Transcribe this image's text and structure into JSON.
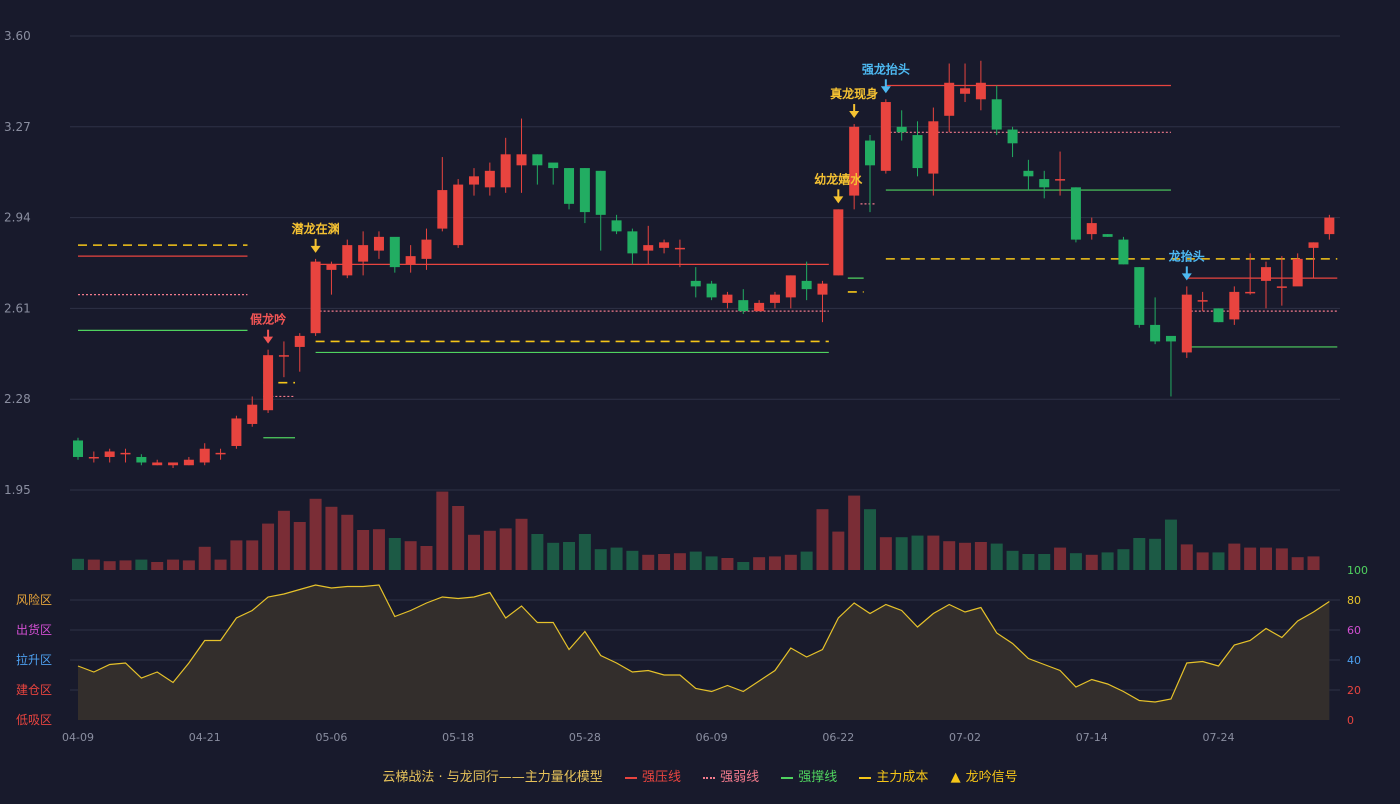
{
  "colors": {
    "background": "#181a2c",
    "up": "#e8443f",
    "down": "#22ad62",
    "volume_up": "#7a2d36",
    "volume_down": "#1c5a45",
    "strong_pressure": "#e8443f",
    "strong_weak": "#f27a8c",
    "strong_support": "#4fd25f",
    "cost": "#f5c518",
    "blue_signal": "#4db8f0",
    "yellow_signal": "#f5c232",
    "red_signal": "#f25555",
    "grid": "#2e3146",
    "axis_text": "#8a8ea0",
    "oscillator_line": "#e6c22a",
    "oscillator_fill": "#332e2c"
  },
  "chart_data": {
    "type": "candlestick",
    "x_tick_labels": [
      "04-09",
      "04-21",
      "05-06",
      "05-18",
      "05-28",
      "06-09",
      "06-22",
      "07-02",
      "07-14",
      "07-24"
    ],
    "x_tick_index": [
      0,
      8,
      16,
      24,
      32,
      40,
      48,
      56,
      64,
      72
    ],
    "y_ticks": [
      "3.60",
      "3.27",
      "2.94",
      "2.61",
      "2.28",
      "1.95"
    ],
    "ylim": [
      1.95,
      3.6
    ],
    "candles": [
      [
        2.13,
        2.07,
        2.14,
        2.06
      ],
      [
        2.065,
        2.07,
        2.09,
        2.05
      ],
      [
        2.07,
        2.09,
        2.1,
        2.05
      ],
      [
        2.08,
        2.085,
        2.1,
        2.05
      ],
      [
        2.07,
        2.05,
        2.08,
        2.04
      ],
      [
        2.04,
        2.05,
        2.06,
        2.04
      ],
      [
        2.04,
        2.05,
        2.05,
        2.03
      ],
      [
        2.04,
        2.06,
        2.07,
        2.04
      ],
      [
        2.05,
        2.1,
        2.12,
        2.04
      ],
      [
        2.08,
        2.085,
        2.1,
        2.06
      ],
      [
        2.11,
        2.21,
        2.22,
        2.1
      ],
      [
        2.19,
        2.26,
        2.29,
        2.18
      ],
      [
        2.24,
        2.44,
        2.46,
        2.23
      ],
      [
        2.44,
        2.44,
        2.49,
        2.36
      ],
      [
        2.47,
        2.51,
        2.52,
        2.38
      ],
      [
        2.52,
        2.78,
        2.79,
        2.51
      ],
      [
        2.75,
        2.77,
        2.78,
        2.66
      ],
      [
        2.73,
        2.84,
        2.86,
        2.72
      ],
      [
        2.78,
        2.84,
        2.89,
        2.73
      ],
      [
        2.82,
        2.87,
        2.89,
        2.79
      ],
      [
        2.87,
        2.76,
        2.86,
        2.74
      ],
      [
        2.77,
        2.8,
        2.84,
        2.74
      ],
      [
        2.79,
        2.86,
        2.9,
        2.75
      ],
      [
        2.9,
        3.04,
        3.16,
        2.89
      ],
      [
        2.84,
        3.06,
        3.08,
        2.83
      ],
      [
        3.06,
        3.09,
        3.12,
        3.02
      ],
      [
        3.05,
        3.11,
        3.14,
        3.02
      ],
      [
        3.05,
        3.17,
        3.23,
        3.03
      ],
      [
        3.13,
        3.17,
        3.3,
        3.03
      ],
      [
        3.17,
        3.13,
        3.17,
        3.06
      ],
      [
        3.14,
        3.12,
        3.13,
        3.06
      ],
      [
        3.12,
        2.99,
        3.12,
        2.97
      ],
      [
        3.12,
        2.96,
        3.12,
        2.92
      ],
      [
        3.11,
        2.95,
        3.11,
        2.82
      ],
      [
        2.93,
        2.89,
        2.95,
        2.88
      ],
      [
        2.89,
        2.81,
        2.9,
        2.77
      ],
      [
        2.82,
        2.84,
        2.91,
        2.77
      ],
      [
        2.83,
        2.85,
        2.86,
        2.81
      ],
      [
        2.83,
        2.83,
        2.86,
        2.76
      ],
      [
        2.71,
        2.69,
        2.76,
        2.65
      ],
      [
        2.7,
        2.65,
        2.71,
        2.64
      ],
      [
        2.63,
        2.66,
        2.67,
        2.61
      ],
      [
        2.64,
        2.6,
        2.68,
        2.59
      ],
      [
        2.6,
        2.63,
        2.64,
        2.6
      ],
      [
        2.63,
        2.66,
        2.67,
        2.61
      ],
      [
        2.65,
        2.73,
        2.73,
        2.61
      ],
      [
        2.71,
        2.68,
        2.78,
        2.64
      ],
      [
        2.66,
        2.7,
        2.71,
        2.56
      ],
      [
        2.73,
        2.97,
        2.97,
        2.73
      ],
      [
        3.02,
        3.27,
        3.28,
        2.97
      ],
      [
        3.22,
        3.13,
        3.24,
        2.96
      ],
      [
        3.11,
        3.36,
        3.37,
        3.1
      ],
      [
        3.27,
        3.25,
        3.33,
        3.22
      ],
      [
        3.24,
        3.12,
        3.29,
        3.09
      ],
      [
        3.1,
        3.29,
        3.34,
        3.02
      ],
      [
        3.31,
        3.43,
        3.5,
        3.25
      ],
      [
        3.39,
        3.41,
        3.5,
        3.36
      ],
      [
        3.37,
        3.43,
        3.51,
        3.33
      ],
      [
        3.37,
        3.26,
        3.42,
        3.24
      ],
      [
        3.26,
        3.21,
        3.27,
        3.16
      ],
      [
        3.11,
        3.09,
        3.15,
        3.04
      ],
      [
        3.08,
        3.05,
        3.11,
        3.01
      ],
      [
        3.08,
        3.08,
        3.18,
        3.02
      ],
      [
        3.05,
        2.86,
        3.05,
        2.85
      ],
      [
        2.88,
        2.92,
        2.94,
        2.86
      ],
      [
        2.88,
        2.87,
        2.88,
        2.87
      ],
      [
        2.86,
        2.77,
        2.87,
        2.77
      ],
      [
        2.76,
        2.55,
        2.76,
        2.54
      ],
      [
        2.55,
        2.49,
        2.65,
        2.48
      ],
      [
        2.51,
        2.49,
        2.5,
        2.29
      ],
      [
        2.45,
        2.66,
        2.69,
        2.43
      ],
      [
        2.64,
        2.64,
        2.67,
        2.6
      ],
      [
        2.61,
        2.56,
        2.61,
        2.56
      ],
      [
        2.57,
        2.67,
        2.69,
        2.55
      ],
      [
        2.67,
        2.67,
        2.81,
        2.66
      ],
      [
        2.71,
        2.76,
        2.78,
        2.61
      ],
      [
        2.69,
        2.69,
        2.8,
        2.62
      ],
      [
        2.69,
        2.79,
        2.81,
        2.7
      ],
      [
        2.83,
        2.85,
        2.85,
        2.72
      ],
      [
        2.88,
        2.94,
        2.95,
        2.86
      ]
    ],
    "volume_ymax": 10,
    "volumes": [
      1.4,
      1.3,
      1.1,
      1.2,
      1.3,
      1.0,
      1.3,
      1.2,
      2.9,
      1.3,
      3.7,
      3.7,
      5.8,
      7.4,
      6.0,
      8.9,
      7.9,
      6.9,
      5.0,
      5.1,
      4.0,
      3.6,
      3.0,
      9.8,
      8.0,
      4.4,
      4.9,
      5.2,
      6.4,
      4.5,
      3.4,
      3.5,
      4.5,
      2.6,
      2.8,
      2.4,
      1.9,
      2.0,
      2.1,
      2.3,
      1.7,
      1.5,
      1.0,
      1.6,
      1.7,
      1.9,
      2.3,
      7.6,
      4.8,
      9.3,
      7.6,
      4.1,
      4.1,
      4.3,
      4.3,
      3.6,
      3.4,
      3.5,
      3.3,
      2.4,
      2.0,
      2.0,
      2.8,
      2.1,
      1.9,
      2.2,
      2.6,
      4.0,
      3.9,
      6.3,
      3.2,
      2.2,
      2.2,
      3.3,
      2.8,
      2.8,
      2.7,
      1.6,
      1.7
    ],
    "oscillator": {
      "ylim": [
        0,
        100
      ],
      "y_ticks": [
        "100",
        "80",
        "60",
        "40",
        "20",
        "0"
      ],
      "zones": [
        "风险区",
        "出货区",
        "拉升区",
        "建仓区",
        "低吸区"
      ],
      "values": [
        36,
        32,
        37,
        38,
        28,
        32,
        25,
        38,
        53,
        53,
        68,
        73,
        82,
        84,
        87,
        90,
        88,
        89,
        89,
        90,
        69,
        73,
        78,
        82,
        81,
        82,
        85,
        68,
        76,
        65,
        65,
        47,
        59,
        43,
        38,
        32,
        33,
        30,
        30,
        21,
        19,
        23,
        19,
        26,
        33,
        48,
        42,
        47,
        68,
        78,
        71,
        77,
        73,
        62,
        71,
        77,
        72,
        75,
        58,
        51,
        41,
        37,
        33,
        22,
        27,
        24,
        19,
        13,
        12,
        14,
        38,
        39,
        36,
        50,
        53,
        61,
        55,
        66,
        72,
        79
      ]
    },
    "signals": [
      {
        "index": 12,
        "label": "假龙吟",
        "kind": "red"
      },
      {
        "index": 15,
        "label": "潜龙在渊",
        "kind": "yellow"
      },
      {
        "index": 48,
        "label": "幼龙嬉水",
        "kind": "yellow"
      },
      {
        "index": 49,
        "label": "真龙现身",
        "kind": "yellow"
      },
      {
        "index": 51,
        "label": "强龙抬头",
        "kind": "blue"
      },
      {
        "index": 70,
        "label": "龙抬头",
        "kind": "blue"
      }
    ],
    "levels": [
      {
        "name": "强压线",
        "from": 0,
        "to": 10.7,
        "value": 2.8,
        "style": "solid",
        "color_key": "strong_pressure"
      },
      {
        "name": "强弱线",
        "from": 0,
        "to": 10.7,
        "value": 2.66,
        "style": "dotted",
        "color_key": "strong_weak"
      },
      {
        "name": "强撑线",
        "from": 0,
        "to": 10.7,
        "value": 2.53,
        "style": "solid",
        "color_key": "strong_support"
      },
      {
        "name": "主力成本",
        "from": 0,
        "to": 10.7,
        "value": 2.84,
        "style": "dashed",
        "color_key": "cost"
      },
      {
        "name": "强撑线",
        "from": 11.7,
        "to": 13.7,
        "value": 2.14,
        "style": "solid",
        "color_key": "strong_support"
      },
      {
        "name": "主力成本",
        "from": 11.7,
        "to": 13.7,
        "value": 2.34,
        "style": "dashed",
        "color_key": "cost"
      },
      {
        "name": "强弱线",
        "from": 11.7,
        "to": 13.7,
        "value": 2.29,
        "style": "dotted",
        "color_key": "strong_weak"
      },
      {
        "name": "强压线",
        "from": 15,
        "to": 47.4,
        "value": 2.77,
        "style": "solid",
        "color_key": "strong_pressure"
      },
      {
        "name": "强弱线",
        "from": 15,
        "to": 47.4,
        "value": 2.6,
        "style": "dotted",
        "color_key": "strong_weak"
      },
      {
        "name": "主力成本",
        "from": 15,
        "to": 47.4,
        "value": 2.49,
        "style": "dashed",
        "color_key": "cost"
      },
      {
        "name": "强撑线",
        "from": 15,
        "to": 47.4,
        "value": 2.45,
        "style": "solid",
        "color_key": "strong_support"
      },
      {
        "name": "强撑线",
        "from": 48.6,
        "to": 49.6,
        "value": 2.72,
        "style": "solid",
        "color_key": "strong_support"
      },
      {
        "name": "主力成本",
        "from": 48.6,
        "to": 49.6,
        "value": 2.67,
        "style": "dashed",
        "color_key": "cost"
      },
      {
        "name": "强弱线",
        "from": 49.4,
        "to": 50.4,
        "value": 2.99,
        "style": "dotted",
        "color_key": "strong_weak"
      },
      {
        "name": "强压线",
        "from": 51,
        "to": 69,
        "value": 3.42,
        "style": "solid",
        "color_key": "strong_pressure"
      },
      {
        "name": "强弱线",
        "from": 51,
        "to": 69,
        "value": 3.25,
        "style": "dotted",
        "color_key": "strong_weak"
      },
      {
        "name": "强撑线",
        "from": 51,
        "to": 69,
        "value": 3.04,
        "style": "solid",
        "color_key": "strong_support"
      },
      {
        "name": "主力成本",
        "from": 51,
        "to": 79.5,
        "value": 2.79,
        "style": "dashed",
        "color_key": "cost"
      },
      {
        "name": "强压线",
        "from": 70,
        "to": 79.5,
        "value": 2.72,
        "style": "solid",
        "color_key": "strong_pressure"
      },
      {
        "name": "强弱线",
        "from": 70,
        "to": 79.5,
        "value": 2.6,
        "style": "dotted",
        "color_key": "strong_weak"
      },
      {
        "name": "强撑线",
        "from": 70,
        "to": 79.5,
        "value": 2.47,
        "style": "solid",
        "color_key": "strong_support"
      }
    ],
    "legend": {
      "title": "云梯战法 · 与龙同行——主力量化模型",
      "items": [
        {
          "label": "强压线",
          "color_key": "strong_pressure",
          "style": "solid"
        },
        {
          "label": "强弱线",
          "color_key": "strong_weak",
          "style": "dotted"
        },
        {
          "label": "强撑线",
          "color_key": "strong_support",
          "style": "solid"
        },
        {
          "label": "主力成本",
          "color_key": "cost",
          "style": "dashed"
        },
        {
          "label": "龙吟信号",
          "color_key": "cost",
          "style": "triangle"
        }
      ]
    }
  }
}
